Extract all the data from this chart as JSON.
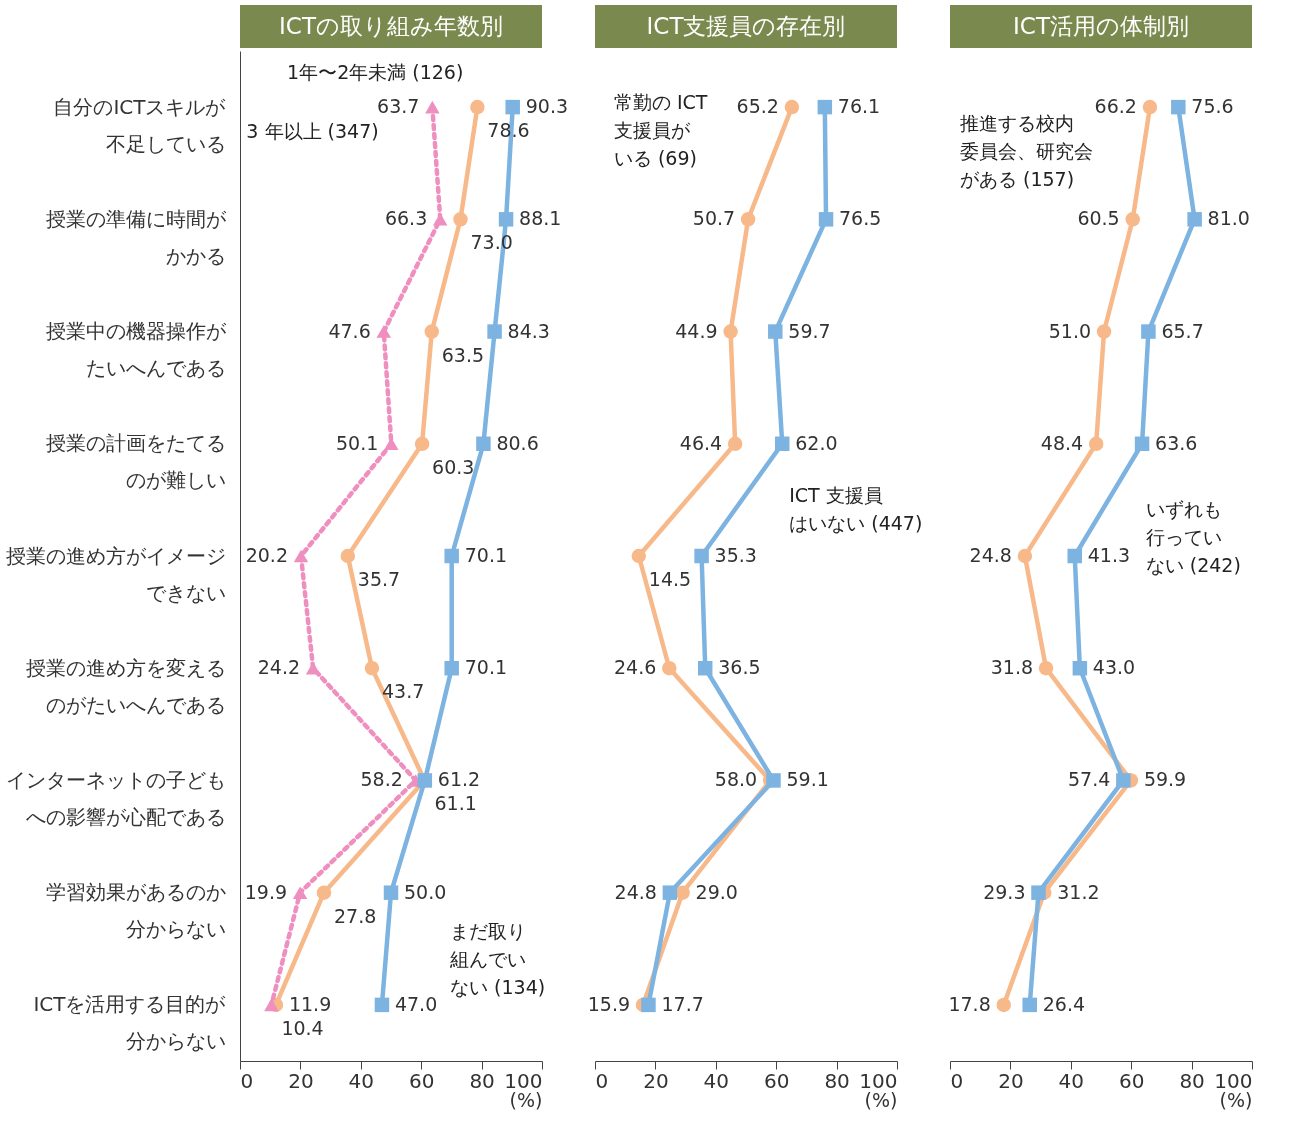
{
  "chart_data": [
    {
      "type": "line",
      "orientation": "horizontal",
      "title": "ICTの取り組み年数別",
      "xlabel": "(%)",
      "xlim": [
        0,
        100
      ],
      "xticks": [
        0,
        20,
        40,
        60,
        80,
        100
      ],
      "grid": false,
      "categories": [
        "自分のICTスキルが不足している",
        "授業の準備に時間がかかる",
        "授業中の機器操作がたいへんである",
        "授業の計画をたてるのが難しい",
        "授業の進め方がイメージできない",
        "授業の進め方を変えるのがたいへんである",
        "インターネットの子どもへの影響が心配である",
        "学習効果があるのか分からない",
        "ICTを活用する目的が分からない"
      ],
      "series": [
        {
          "name": "1年〜2年未満 (126)",
          "color": "#f8b98a",
          "marker": "circle",
          "line_style": "solid",
          "values": [
            78.6,
            73.0,
            63.5,
            60.3,
            35.7,
            43.7,
            61.1,
            27.8,
            11.9
          ],
          "value_labels": [
            "78.6",
            "73.0",
            "63.5",
            "60.3",
            "35.7",
            "43.7",
            "61.1",
            "27.8",
            "11.9"
          ]
        },
        {
          "name": "3 年以上 (347)",
          "color": "#ef8fbf",
          "marker": "triangle",
          "line_style": "dotted",
          "values": [
            63.7,
            66.3,
            47.6,
            50.1,
            20.2,
            24.2,
            58.2,
            19.9,
            10.4
          ],
          "value_labels": [
            "63.7",
            "66.3",
            "47.6",
            "50.1",
            "20.2",
            "24.2",
            "58.2",
            "19.9",
            "10.4"
          ]
        },
        {
          "name": "まだ取り組んでいない (134)",
          "color": "#7db3e1",
          "marker": "square",
          "line_style": "solid",
          "values": [
            90.3,
            88.1,
            84.3,
            80.6,
            70.1,
            70.1,
            61.2,
            50.0,
            47.0
          ],
          "value_labels": [
            "90.3",
            "88.1",
            "84.3",
            "80.6",
            "70.1",
            "70.1",
            "61.2",
            "50.0",
            "47.0"
          ]
        }
      ]
    },
    {
      "type": "line",
      "orientation": "horizontal",
      "title": "ICT支援員の存在別",
      "xlabel": "(%)",
      "xlim": [
        0,
        100
      ],
      "xticks": [
        0,
        20,
        40,
        60,
        80,
        100
      ],
      "grid": false,
      "tick_labels": "x",
      "categories": [
        null,
        null,
        null,
        null,
        null,
        null,
        null,
        null,
        null
      ],
      "series": [
        {
          "name": "常勤の ICT支援員がいる (69)",
          "color": "#f8b98a",
          "marker": "circle",
          "line_style": "solid",
          "values": [
            65.2,
            50.7,
            44.9,
            46.4,
            14.5,
            24.6,
            58.0,
            29.0,
            15.9
          ],
          "value_labels": [
            "65.2",
            "50.7",
            "44.9",
            "46.4",
            "14.5",
            "24.6",
            "58.0",
            "29.0",
            "15.9"
          ]
        },
        {
          "name": "ICT 支援員はいない (447)",
          "color": "#7db3e1",
          "marker": "square",
          "line_style": "solid",
          "values": [
            76.1,
            76.5,
            59.7,
            62.0,
            35.3,
            36.5,
            59.1,
            24.8,
            17.7
          ],
          "value_labels": [
            "76.1",
            "76.5",
            "59.7",
            "62.0",
            "35.3",
            "36.5",
            "59.1",
            "24.8",
            "17.7"
          ]
        }
      ]
    },
    {
      "type": "line",
      "orientation": "horizontal",
      "title": "ICT活用の体制別",
      "xlabel": "(%)",
      "xlim": [
        0,
        100
      ],
      "xticks": [
        0,
        20,
        40,
        60,
        80,
        100
      ],
      "grid": false,
      "tick_labels": "x",
      "categories": [
        null,
        null,
        null,
        null,
        null,
        null,
        null,
        null,
        null
      ],
      "series": [
        {
          "name": "推進する校内委員会、研究会がある (157)",
          "color": "#f8b98a",
          "marker": "circle",
          "line_style": "solid",
          "values": [
            66.2,
            60.5,
            51.0,
            48.4,
            24.8,
            31.8,
            59.9,
            31.2,
            17.8
          ],
          "value_labels": [
            "66.2",
            "60.5",
            "51.0",
            "48.4",
            "24.8",
            "31.8",
            "59.9",
            "31.2",
            "17.8"
          ]
        },
        {
          "name": "いずれも行っていない (242)",
          "color": "#7db3e1",
          "marker": "square",
          "line_style": "solid",
          "values": [
            75.6,
            81.0,
            65.7,
            63.6,
            41.3,
            43.0,
            57.4,
            29.3,
            26.4
          ],
          "value_labels": [
            "75.6",
            "81.0",
            "65.7",
            "63.6",
            "41.3",
            "43.0",
            "57.4",
            "29.3",
            "26.4"
          ]
        }
      ]
    }
  ]
}
